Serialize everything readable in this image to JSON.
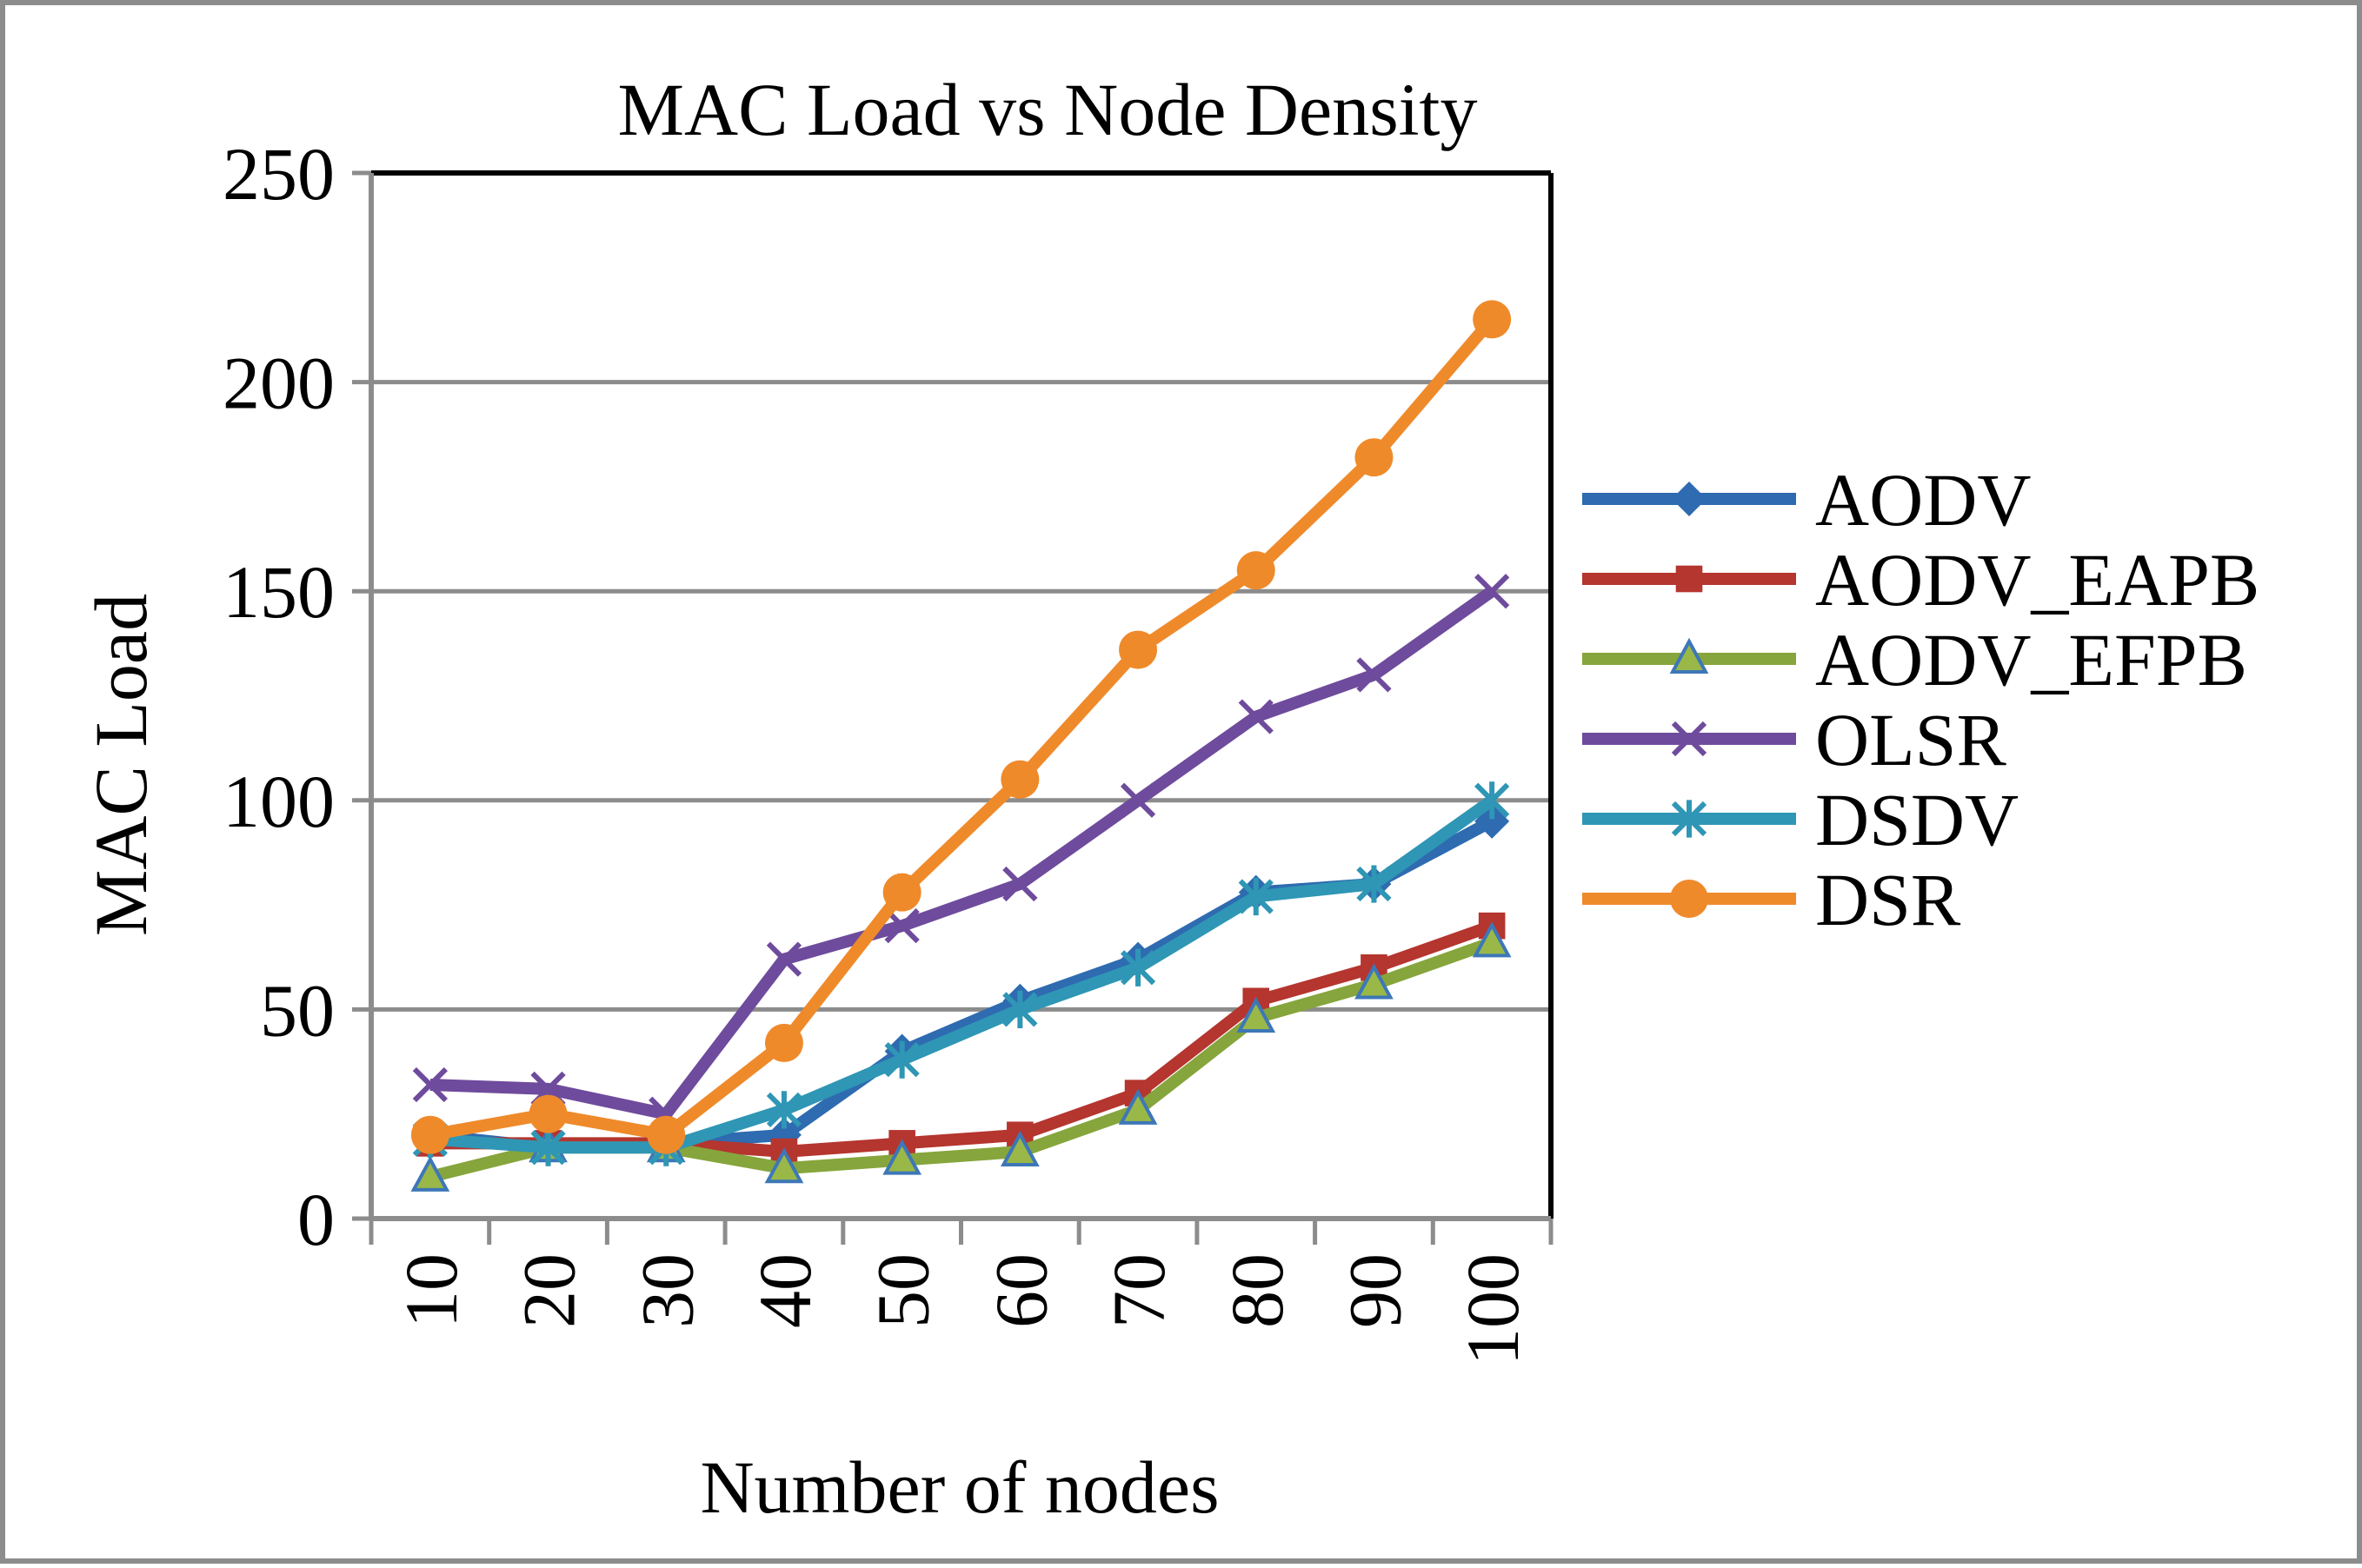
{
  "chart_data": {
    "type": "line",
    "title": "MAC Load vs Node Density",
    "xlabel": "Number of nodes",
    "ylabel": "MAC Load",
    "categories": [
      "10",
      "20",
      "30",
      "40",
      "50",
      "60",
      "70",
      "80",
      "90",
      "100"
    ],
    "ylim": [
      0,
      250
    ],
    "yticks": [
      "0",
      "50",
      "100",
      "150",
      "200",
      "250"
    ],
    "grid": true,
    "legend_position": "right",
    "series": [
      {
        "name": "AODV",
        "color": "#2e6bb0",
        "marker": "diamond",
        "values": [
          20,
          17,
          18,
          20,
          40,
          52,
          62,
          78,
          80,
          95
        ]
      },
      {
        "name": "AODV_EAPB",
        "color": "#b5352f",
        "marker": "square",
        "values": [
          18,
          18,
          18,
          16,
          18,
          20,
          30,
          52,
          60,
          70
        ]
      },
      {
        "name": "AODV_EFPB",
        "color": "#86a53c",
        "marker": "triangle",
        "values": [
          10,
          17,
          17,
          12,
          14,
          16,
          26,
          48,
          56,
          66
        ]
      },
      {
        "name": "OLSR",
        "color": "#6e4b9c",
        "marker": "x",
        "values": [
          32,
          31,
          25,
          62,
          70,
          80,
          100,
          120,
          130,
          150
        ]
      },
      {
        "name": "DSDV",
        "color": "#2f96b5",
        "marker": "star",
        "values": [
          19,
          17,
          17,
          26,
          38,
          50,
          60,
          77,
          80,
          100
        ]
      },
      {
        "name": "DSR",
        "color": "#ef8a2b",
        "marker": "circle",
        "values": [
          20,
          25,
          20,
          42,
          78,
          105,
          136,
          155,
          182,
          215
        ]
      }
    ]
  }
}
